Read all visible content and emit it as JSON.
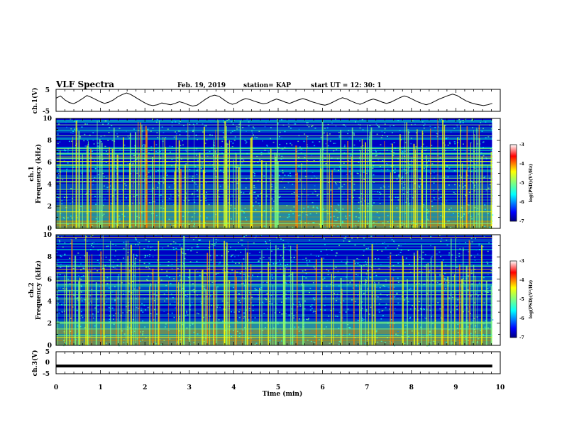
{
  "header": {
    "title": "VLF Spectra",
    "date": "Feb. 19, 2019",
    "station": "station= KAP",
    "start_ut": "start  UT =   12: 30: 1"
  },
  "chart_data": [
    {
      "id": "ch1_waveform",
      "type": "line",
      "ylabel": "ch.1(V)",
      "ylim": [
        -5,
        5
      ],
      "yticks": [
        "5",
        "-5"
      ],
      "xlim": [
        0,
        10
      ],
      "x_end_min": 9.82,
      "series": [
        {
          "values": [
            1.0,
            2.0,
            0.2,
            -1.0,
            -1.5,
            -0.5,
            0.8,
            2.2,
            1.4,
            0.4,
            -0.6,
            -1.4,
            -0.8,
            0.2,
            1.6,
            2.6,
            3.4,
            2.6,
            1.4,
            0.2,
            -1.0,
            -2.0,
            -2.4,
            -2.0,
            -1.2,
            -1.6,
            -2.0,
            -1.4,
            -0.6,
            -1.2,
            -2.0,
            -2.6,
            -2.2,
            -0.8,
            0.6,
            1.8,
            2.4,
            1.8,
            0.4,
            -1.0,
            -1.8,
            -1.2,
            0.0,
            0.8,
            0.4,
            -0.4,
            -1.0,
            -1.6,
            -1.2,
            -0.2,
            0.6,
            0.0,
            -0.8,
            -1.4,
            -0.6,
            0.2,
            0.8,
            0.2,
            -0.6,
            -1.2,
            -1.8,
            -2.2,
            -1.6,
            -0.6,
            0.4,
            1.2,
            0.6,
            -0.4,
            -1.2,
            -1.8,
            -1.0,
            0.0,
            0.6,
            0.0,
            -0.8,
            -1.4,
            -0.8,
            0.2,
            1.2,
            2.0,
            1.4,
            0.4,
            -0.6,
            -1.4,
            -2.0,
            -1.4,
            -0.4,
            0.6,
            1.4,
            2.2,
            2.8,
            2.2,
            1.0,
            -0.2,
            -1.0,
            -1.6,
            -2.0,
            -2.4,
            -2.0,
            -1.4
          ]
        }
      ]
    },
    {
      "id": "ch1_spectrogram",
      "type": "heatmap",
      "ylabel_line1": "ch.1",
      "ylabel_line2": "Frequency (kHz)",
      "ylim": [
        0,
        10
      ],
      "yticks": [
        "0",
        "2",
        "4",
        "6",
        "8",
        "10"
      ],
      "xlim": [
        0,
        10
      ],
      "x_end_min": 9.82,
      "colorbar": {
        "label": "log(PSD)(V²/Hz)",
        "range": [
          -7,
          -3
        ],
        "ticks": [
          "-3",
          "-4",
          "-5",
          "-6",
          "-7"
        ]
      }
    },
    {
      "id": "ch2_spectrogram",
      "type": "heatmap",
      "ylabel_line1": "ch.2",
      "ylabel_line2": "Frequency (kHz)",
      "ylim": [
        0,
        10
      ],
      "yticks": [
        "0",
        "2",
        "4",
        "6",
        "8",
        "10"
      ],
      "xlim": [
        0,
        10
      ],
      "x_end_min": 9.82,
      "colorbar": {
        "label": "log(PSD)(V²/Hz)",
        "range": [
          -7,
          -3
        ],
        "ticks": [
          "-3",
          "-4",
          "-5",
          "-6",
          "-7"
        ]
      }
    },
    {
      "id": "ch3_waveform",
      "type": "line",
      "ylabel": "ch.3(V)",
      "ylim": [
        -5,
        5
      ],
      "yticks": [
        "5",
        "0",
        "-5"
      ],
      "xlim": [
        0,
        10
      ],
      "x_end_min": 9.82,
      "series": [
        {
          "values": [
            -1.5,
            -1.5
          ]
        }
      ]
    }
  ],
  "xaxis": {
    "label": "Time  (min)",
    "ticks": [
      "0",
      "1",
      "2",
      "3",
      "4",
      "5",
      "6",
      "7",
      "8",
      "9",
      "10"
    ]
  },
  "colors": {
    "black": "#000000",
    "colormap": [
      "#00007f",
      "#0000ff",
      "#007fff",
      "#00ffff",
      "#7fff7f",
      "#ffff00",
      "#ff7f00",
      "#ff0000",
      "#ffffff"
    ]
  }
}
